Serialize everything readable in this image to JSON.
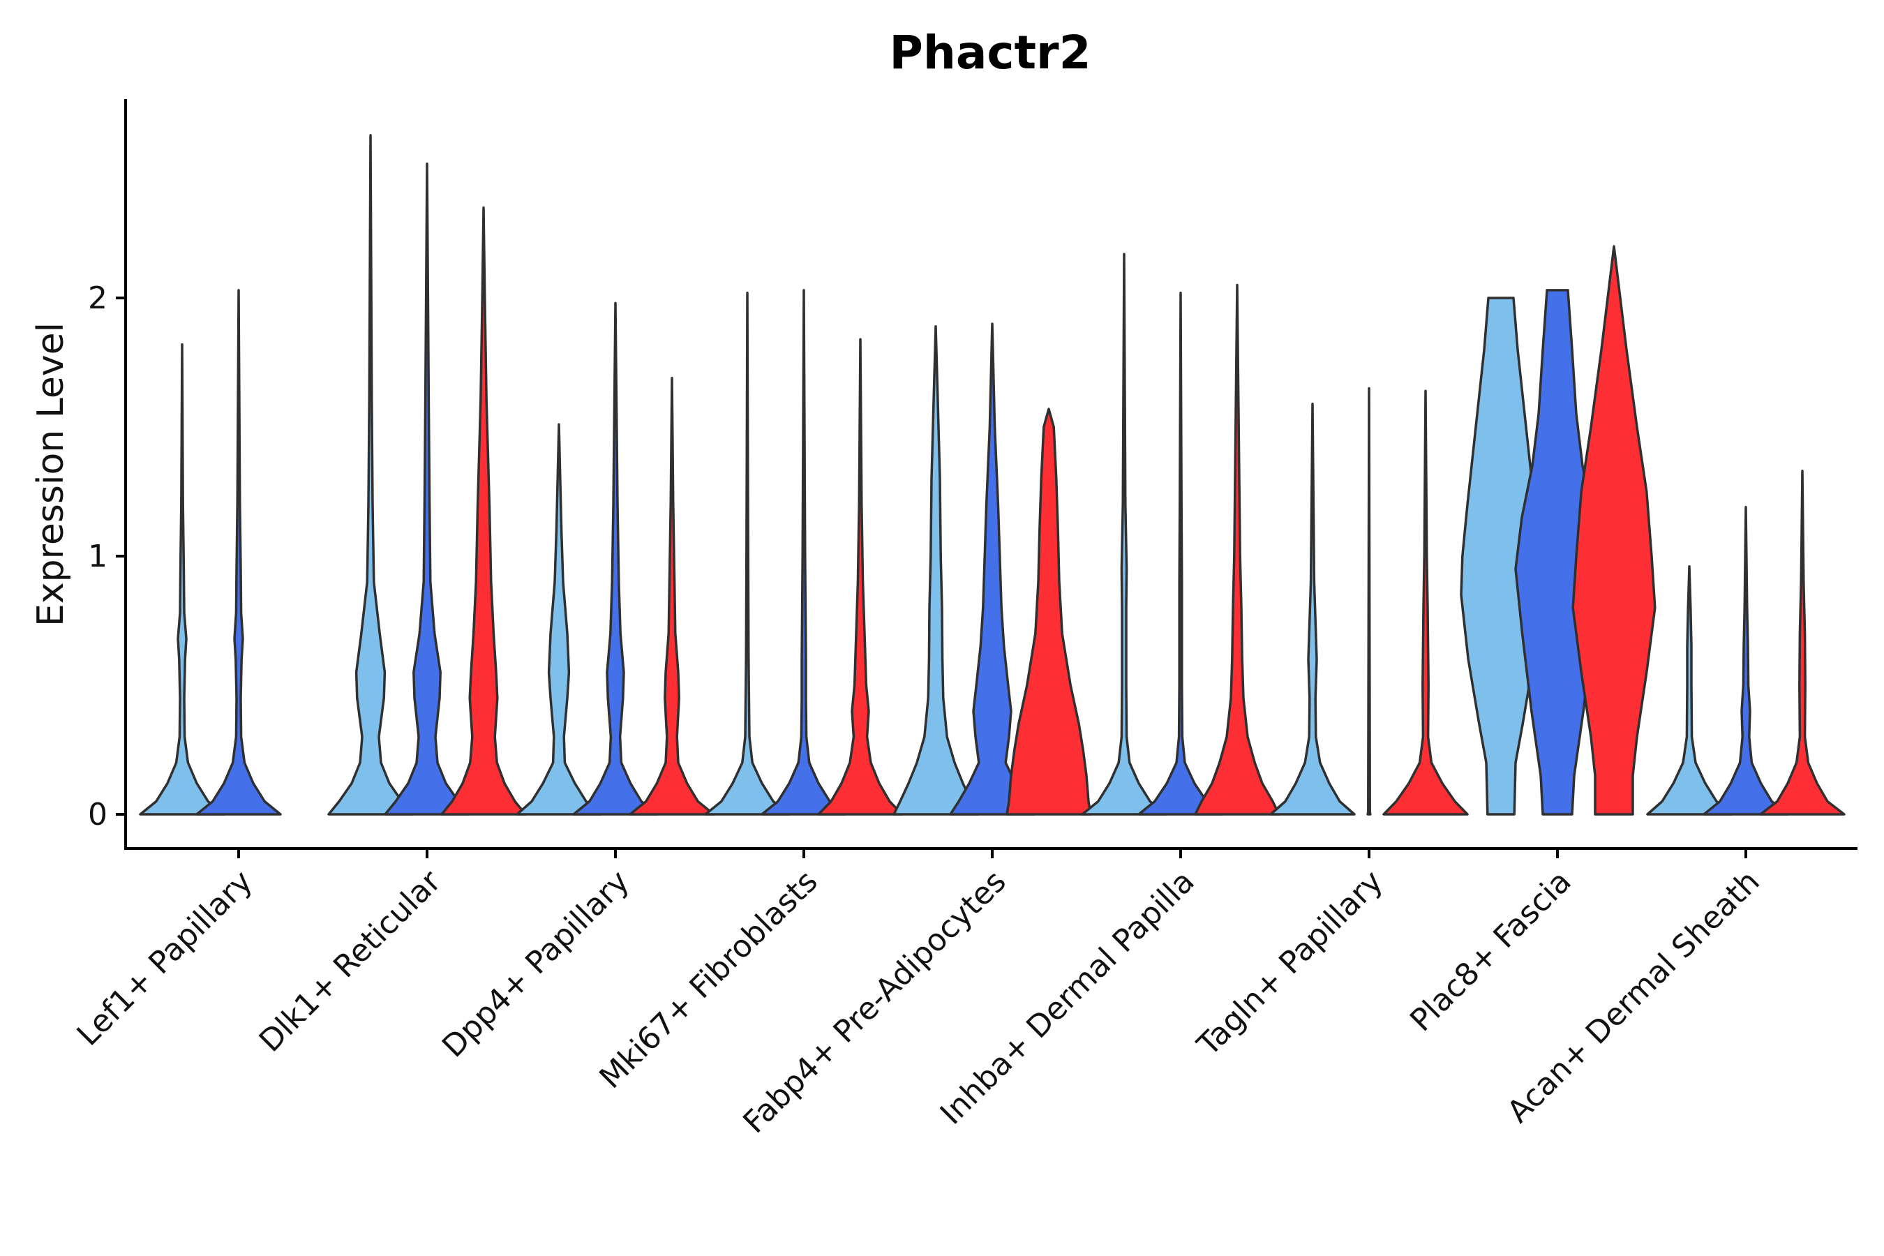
{
  "chart_data": {
    "type": "violin",
    "title": "Phactr2",
    "xlabel": "",
    "ylabel": "Expression Level",
    "ylim": [
      -0.13,
      2.77
    ],
    "yticks": [
      0,
      1,
      2
    ],
    "grid": false,
    "legend": "none",
    "group_colors": [
      "#7fbfec",
      "#4470ea",
      "#fd2f34"
    ],
    "categories": [
      "Lef1+ Papillary",
      "Dlk1+ Reticular",
      "Dpp4+ Papillary",
      "Mki67+ Fibroblasts",
      "Fabp4+ Pre-Adipocytes",
      "Inhba+ Dermal Papilla",
      "Tagln+ Papillary",
      "Plac8+ Fascia",
      "Acan+ Dermal Sheath"
    ],
    "violins": [
      {
        "category": 0,
        "group": 0,
        "max": 1.82,
        "profile": [
          [
            0,
            1
          ],
          [
            0.05,
            0.62
          ],
          [
            0.12,
            0.35
          ],
          [
            0.2,
            0.14
          ],
          [
            0.3,
            0.06
          ],
          [
            0.45,
            0.05
          ],
          [
            0.6,
            0.07
          ],
          [
            0.68,
            0.1
          ],
          [
            0.78,
            0.05
          ],
          [
            0.95,
            0.04
          ],
          [
            1.2,
            0.02
          ],
          [
            1.82,
            0
          ]
        ]
      },
      {
        "category": 0,
        "group": 1,
        "max": 2.03,
        "profile": [
          [
            0,
            1
          ],
          [
            0.05,
            0.62
          ],
          [
            0.12,
            0.35
          ],
          [
            0.2,
            0.14
          ],
          [
            0.3,
            0.06
          ],
          [
            0.45,
            0.05
          ],
          [
            0.6,
            0.07
          ],
          [
            0.68,
            0.1
          ],
          [
            0.78,
            0.06
          ],
          [
            0.95,
            0.05
          ],
          [
            1.2,
            0.03
          ],
          [
            2.03,
            0
          ]
        ]
      },
      {
        "category": 1,
        "group": 0,
        "max": 2.63,
        "profile": [
          [
            0,
            1
          ],
          [
            0.05,
            0.75
          ],
          [
            0.12,
            0.45
          ],
          [
            0.2,
            0.25
          ],
          [
            0.3,
            0.2
          ],
          [
            0.45,
            0.32
          ],
          [
            0.55,
            0.34
          ],
          [
            0.7,
            0.22
          ],
          [
            0.9,
            0.08
          ],
          [
            1.2,
            0.05
          ],
          [
            1.6,
            0.03
          ],
          [
            2.63,
            0
          ]
        ]
      },
      {
        "category": 1,
        "group": 1,
        "max": 2.52,
        "profile": [
          [
            0,
            1
          ],
          [
            0.05,
            0.75
          ],
          [
            0.12,
            0.45
          ],
          [
            0.2,
            0.25
          ],
          [
            0.3,
            0.2
          ],
          [
            0.45,
            0.3
          ],
          [
            0.55,
            0.32
          ],
          [
            0.7,
            0.18
          ],
          [
            0.9,
            0.08
          ],
          [
            1.2,
            0.06
          ],
          [
            1.6,
            0.04
          ],
          [
            2.52,
            0
          ]
        ]
      },
      {
        "category": 1,
        "group": 2,
        "max": 2.35,
        "profile": [
          [
            0,
            1
          ],
          [
            0.05,
            0.75
          ],
          [
            0.12,
            0.5
          ],
          [
            0.2,
            0.32
          ],
          [
            0.3,
            0.27
          ],
          [
            0.45,
            0.33
          ],
          [
            0.55,
            0.3
          ],
          [
            0.7,
            0.24
          ],
          [
            0.9,
            0.18
          ],
          [
            1.2,
            0.14
          ],
          [
            1.6,
            0.07
          ],
          [
            2.0,
            0.03
          ],
          [
            2.35,
            0
          ]
        ]
      },
      {
        "category": 2,
        "group": 0,
        "max": 1.51,
        "profile": [
          [
            0,
            1
          ],
          [
            0.05,
            0.65
          ],
          [
            0.12,
            0.38
          ],
          [
            0.2,
            0.14
          ],
          [
            0.3,
            0.12
          ],
          [
            0.45,
            0.2
          ],
          [
            0.55,
            0.24
          ],
          [
            0.7,
            0.2
          ],
          [
            0.9,
            0.1
          ],
          [
            1.1,
            0.06
          ],
          [
            1.51,
            0
          ]
        ]
      },
      {
        "category": 2,
        "group": 1,
        "max": 1.98,
        "profile": [
          [
            0,
            1
          ],
          [
            0.05,
            0.62
          ],
          [
            0.12,
            0.36
          ],
          [
            0.2,
            0.14
          ],
          [
            0.3,
            0.11
          ],
          [
            0.45,
            0.18
          ],
          [
            0.55,
            0.2
          ],
          [
            0.7,
            0.12
          ],
          [
            0.9,
            0.08
          ],
          [
            1.2,
            0.05
          ],
          [
            1.98,
            0
          ]
        ]
      },
      {
        "category": 2,
        "group": 2,
        "max": 1.69,
        "profile": [
          [
            0,
            1
          ],
          [
            0.05,
            0.62
          ],
          [
            0.12,
            0.36
          ],
          [
            0.2,
            0.15
          ],
          [
            0.3,
            0.12
          ],
          [
            0.45,
            0.17
          ],
          [
            0.55,
            0.15
          ],
          [
            0.7,
            0.08
          ],
          [
            0.9,
            0.06
          ],
          [
            1.2,
            0.03
          ],
          [
            1.69,
            0
          ]
        ]
      },
      {
        "category": 3,
        "group": 0,
        "max": 2.02,
        "profile": [
          [
            0,
            1
          ],
          [
            0.05,
            0.62
          ],
          [
            0.12,
            0.35
          ],
          [
            0.2,
            0.12
          ],
          [
            0.3,
            0.05
          ],
          [
            0.45,
            0.04
          ],
          [
            0.6,
            0.03
          ],
          [
            1.0,
            0.02
          ],
          [
            2.02,
            0
          ]
        ]
      },
      {
        "category": 3,
        "group": 1,
        "max": 2.03,
        "profile": [
          [
            0,
            1
          ],
          [
            0.05,
            0.62
          ],
          [
            0.12,
            0.35
          ],
          [
            0.2,
            0.13
          ],
          [
            0.3,
            0.06
          ],
          [
            0.45,
            0.05
          ],
          [
            0.6,
            0.05
          ],
          [
            1.0,
            0.03
          ],
          [
            2.03,
            0
          ]
        ]
      },
      {
        "category": 3,
        "group": 2,
        "max": 1.84,
        "profile": [
          [
            0,
            1
          ],
          [
            0.05,
            0.7
          ],
          [
            0.12,
            0.45
          ],
          [
            0.2,
            0.25
          ],
          [
            0.3,
            0.16
          ],
          [
            0.4,
            0.2
          ],
          [
            0.5,
            0.14
          ],
          [
            0.7,
            0.1
          ],
          [
            0.9,
            0.06
          ],
          [
            1.2,
            0.03
          ],
          [
            1.84,
            0
          ]
        ]
      },
      {
        "category": 4,
        "group": 0,
        "max": 1.89,
        "profile": [
          [
            0,
            1
          ],
          [
            0.05,
            0.85
          ],
          [
            0.12,
            0.65
          ],
          [
            0.2,
            0.45
          ],
          [
            0.3,
            0.27
          ],
          [
            0.45,
            0.18
          ],
          [
            0.6,
            0.16
          ],
          [
            0.8,
            0.15
          ],
          [
            1.0,
            0.12
          ],
          [
            1.3,
            0.1
          ],
          [
            1.6,
            0.05
          ],
          [
            1.89,
            0
          ]
        ]
      },
      {
        "category": 4,
        "group": 1,
        "max": 1.9,
        "profile": [
          [
            0,
            1
          ],
          [
            0.05,
            0.8
          ],
          [
            0.12,
            0.55
          ],
          [
            0.2,
            0.32
          ],
          [
            0.3,
            0.4
          ],
          [
            0.4,
            0.45
          ],
          [
            0.5,
            0.38
          ],
          [
            0.65,
            0.28
          ],
          [
            0.8,
            0.22
          ],
          [
            1.0,
            0.18
          ],
          [
            1.2,
            0.14
          ],
          [
            1.5,
            0.06
          ],
          [
            1.9,
            0
          ]
        ]
      },
      {
        "category": 4,
        "group": 2,
        "max": 1.57,
        "profile": [
          [
            0,
            1
          ],
          [
            0.05,
            0.95
          ],
          [
            0.15,
            0.9
          ],
          [
            0.25,
            0.82
          ],
          [
            0.35,
            0.72
          ],
          [
            0.5,
            0.52
          ],
          [
            0.7,
            0.32
          ],
          [
            0.9,
            0.25
          ],
          [
            1.1,
            0.22
          ],
          [
            1.3,
            0.18
          ],
          [
            1.5,
            0.12
          ],
          [
            1.57,
            0
          ]
        ]
      },
      {
        "category": 5,
        "group": 0,
        "max": 2.17,
        "profile": [
          [
            0,
            1
          ],
          [
            0.05,
            0.62
          ],
          [
            0.12,
            0.35
          ],
          [
            0.2,
            0.13
          ],
          [
            0.3,
            0.06
          ],
          [
            0.5,
            0.05
          ],
          [
            0.8,
            0.05
          ],
          [
            0.95,
            0.06
          ],
          [
            1.2,
            0.03
          ],
          [
            2.17,
            0
          ]
        ]
      },
      {
        "category": 5,
        "group": 1,
        "max": 2.02,
        "profile": [
          [
            0,
            1
          ],
          [
            0.05,
            0.62
          ],
          [
            0.12,
            0.33
          ],
          [
            0.2,
            0.1
          ],
          [
            0.3,
            0.04
          ],
          [
            0.5,
            0.03
          ],
          [
            0.9,
            0.03
          ],
          [
            1.2,
            0.02
          ],
          [
            2.02,
            0
          ]
        ]
      },
      {
        "category": 5,
        "group": 2,
        "max": 2.05,
        "profile": [
          [
            0,
            1
          ],
          [
            0.05,
            0.85
          ],
          [
            0.12,
            0.6
          ],
          [
            0.2,
            0.42
          ],
          [
            0.3,
            0.25
          ],
          [
            0.45,
            0.15
          ],
          [
            0.6,
            0.12
          ],
          [
            0.8,
            0.1
          ],
          [
            1.0,
            0.07
          ],
          [
            1.3,
            0.05
          ],
          [
            2.05,
            0
          ]
        ]
      },
      {
        "category": 6,
        "group": 0,
        "max": 1.59,
        "profile": [
          [
            0,
            1
          ],
          [
            0.05,
            0.65
          ],
          [
            0.12,
            0.4
          ],
          [
            0.2,
            0.18
          ],
          [
            0.3,
            0.08
          ],
          [
            0.45,
            0.07
          ],
          [
            0.6,
            0.1
          ],
          [
            0.75,
            0.07
          ],
          [
            0.9,
            0.04
          ],
          [
            1.59,
            0
          ]
        ]
      },
      {
        "category": 6,
        "group": 1,
        "max": 1.65,
        "profile": [
          [
            0,
            0.03
          ],
          [
            0.01,
            0.02
          ],
          [
            0.05,
            0.02
          ],
          [
            1.65,
            0
          ]
        ]
      },
      {
        "category": 6,
        "group": 2,
        "max": 1.64,
        "profile": [
          [
            0,
            1
          ],
          [
            0.05,
            0.7
          ],
          [
            0.12,
            0.4
          ],
          [
            0.2,
            0.14
          ],
          [
            0.3,
            0.06
          ],
          [
            0.5,
            0.07
          ],
          [
            0.8,
            0.05
          ],
          [
            1.0,
            0.03
          ],
          [
            1.64,
            0
          ]
        ]
      },
      {
        "category": 7,
        "group": 0,
        "max": 2.0,
        "profile": [
          [
            0,
            0.32
          ],
          [
            0.2,
            0.35
          ],
          [
            0.35,
            0.52
          ],
          [
            0.6,
            0.78
          ],
          [
            0.85,
            0.95
          ],
          [
            1.0,
            0.92
          ],
          [
            1.2,
            0.8
          ],
          [
            1.5,
            0.6
          ],
          [
            1.8,
            0.4
          ],
          [
            2.0,
            0.3
          ]
        ]
      },
      {
        "category": 7,
        "group": 1,
        "max": 2.03,
        "profile": [
          [
            0,
            0.35
          ],
          [
            0.15,
            0.4
          ],
          [
            0.4,
            0.62
          ],
          [
            0.7,
            0.84
          ],
          [
            0.95,
            1.0
          ],
          [
            1.15,
            0.85
          ],
          [
            1.35,
            0.6
          ],
          [
            1.55,
            0.45
          ],
          [
            1.8,
            0.35
          ],
          [
            2.03,
            0.25
          ]
        ]
      },
      {
        "category": 7,
        "group": 2,
        "max": 2.2,
        "profile": [
          [
            0,
            0.45
          ],
          [
            0.15,
            0.45
          ],
          [
            0.3,
            0.55
          ],
          [
            0.55,
            0.78
          ],
          [
            0.8,
            0.98
          ],
          [
            1.0,
            0.9
          ],
          [
            1.25,
            0.78
          ],
          [
            1.5,
            0.55
          ],
          [
            1.8,
            0.3
          ],
          [
            2.0,
            0.15
          ],
          [
            2.2,
            0
          ]
        ]
      },
      {
        "category": 8,
        "group": 0,
        "max": 0.96,
        "profile": [
          [
            0,
            1
          ],
          [
            0.05,
            0.65
          ],
          [
            0.12,
            0.38
          ],
          [
            0.2,
            0.15
          ],
          [
            0.3,
            0.06
          ],
          [
            0.5,
            0.05
          ],
          [
            0.65,
            0.05
          ],
          [
            0.8,
            0.03
          ],
          [
            0.96,
            0
          ]
        ]
      },
      {
        "category": 8,
        "group": 1,
        "max": 1.19,
        "profile": [
          [
            0,
            1
          ],
          [
            0.05,
            0.62
          ],
          [
            0.12,
            0.36
          ],
          [
            0.2,
            0.14
          ],
          [
            0.3,
            0.08
          ],
          [
            0.4,
            0.1
          ],
          [
            0.5,
            0.06
          ],
          [
            0.65,
            0.05
          ],
          [
            0.8,
            0.03
          ],
          [
            1.19,
            0
          ]
        ]
      },
      {
        "category": 8,
        "group": 2,
        "max": 1.33,
        "profile": [
          [
            0,
            1
          ],
          [
            0.05,
            0.6
          ],
          [
            0.12,
            0.35
          ],
          [
            0.2,
            0.14
          ],
          [
            0.3,
            0.06
          ],
          [
            0.5,
            0.07
          ],
          [
            0.7,
            0.06
          ],
          [
            0.9,
            0.03
          ],
          [
            1.33,
            0
          ]
        ]
      }
    ]
  }
}
